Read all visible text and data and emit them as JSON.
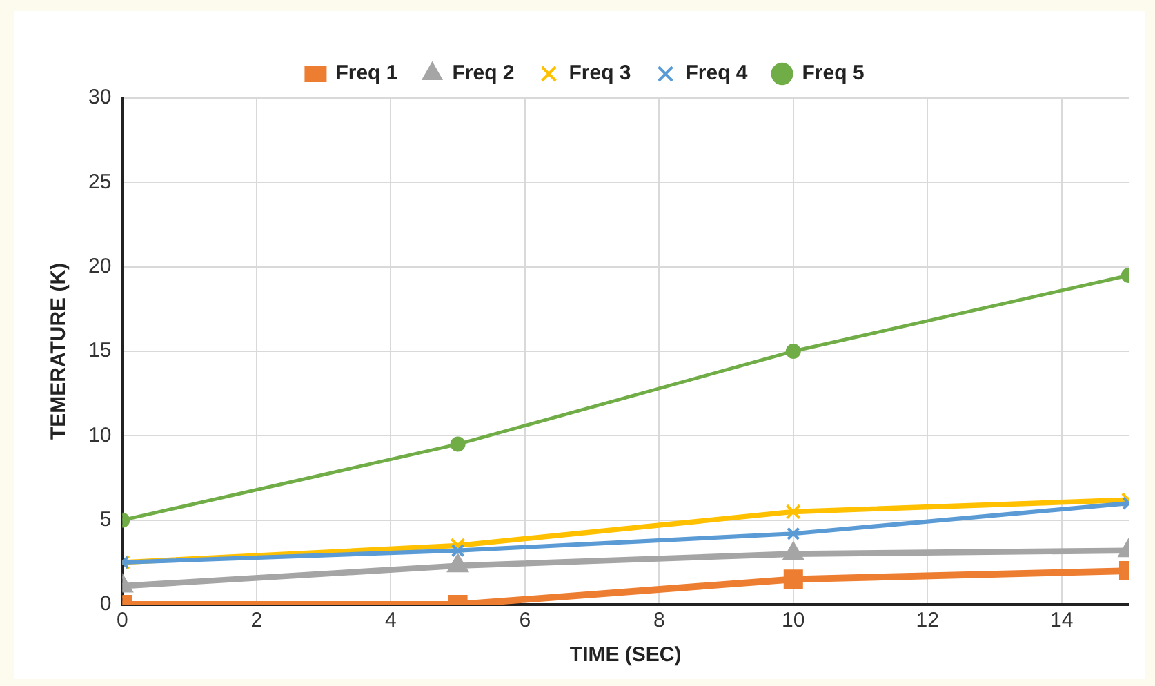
{
  "chart_data": {
    "type": "line",
    "xlabel": "TIME (SEC)",
    "ylabel": "TEMERATURE (K)",
    "x": [
      0,
      5,
      10,
      15
    ],
    "series": [
      {
        "name": "Freq 1",
        "color": "#ed7d31",
        "marker": "square",
        "values": [
          0,
          0,
          1.5,
          2
        ]
      },
      {
        "name": "Freq 2",
        "color": "#a5a5a5",
        "marker": "triangle",
        "values": [
          1.1,
          2.3,
          3.0,
          3.2
        ]
      },
      {
        "name": "Freq 3",
        "color": "#ffc000",
        "marker": "cross",
        "values": [
          2.5,
          3.5,
          5.5,
          6.2
        ]
      },
      {
        "name": "Freq 4",
        "color": "#5b9bd5",
        "marker": "cross",
        "values": [
          2.5,
          3.2,
          4.2,
          6.0
        ]
      },
      {
        "name": "Freq 5",
        "color": "#70ad47",
        "marker": "circle",
        "values": [
          5,
          9.5,
          15,
          19.5
        ]
      }
    ],
    "xlim": [
      0,
      15
    ],
    "xticks": [
      0,
      2,
      4,
      6,
      8,
      10,
      12,
      14
    ],
    "ylim": [
      0,
      30
    ],
    "yticks": [
      0,
      5,
      10,
      15,
      20,
      25,
      30
    ],
    "grid": true,
    "legend": "top",
    "line_style": "solid"
  }
}
